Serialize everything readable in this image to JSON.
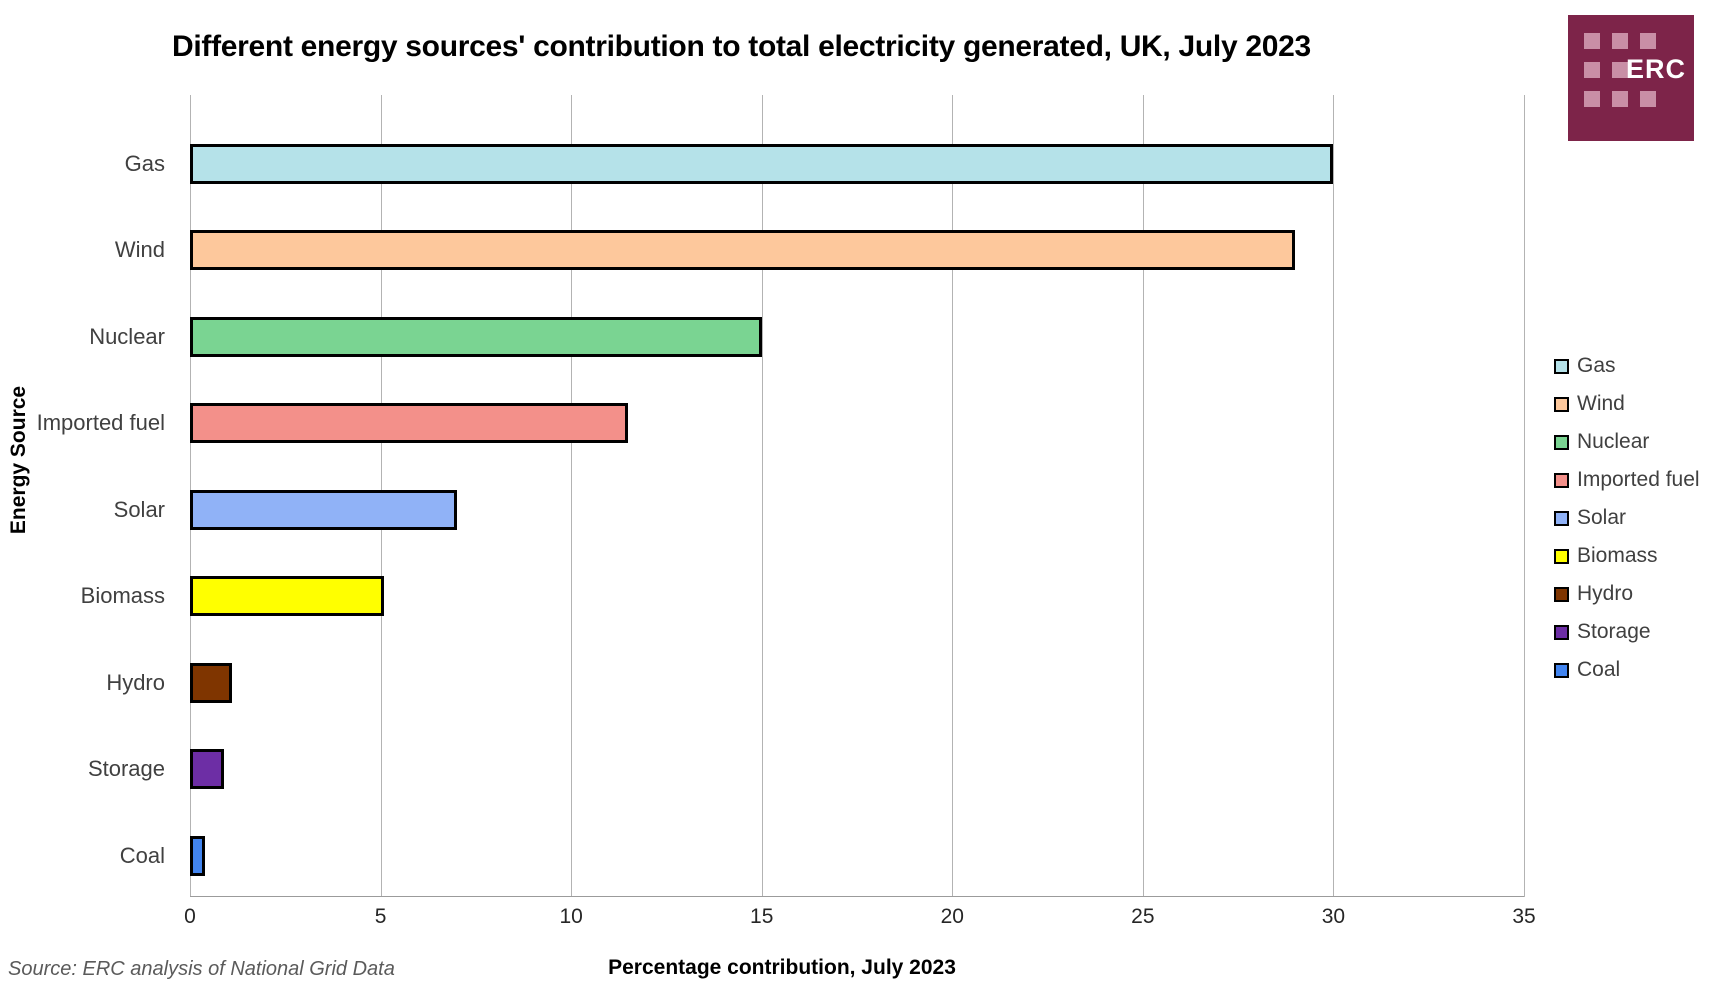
{
  "title": "Different energy sources' contribution to total electricity generated, UK, July 2023",
  "logo": {
    "text": "ERC",
    "bg_color": "#7D2449",
    "square_color": "#C98FA6"
  },
  "chart_data": {
    "type": "bar",
    "orientation": "horizontal",
    "title": "Different energy sources' contribution to total electricity generated, UK, July 2023",
    "xlabel": "Percentage contribution, July 2023",
    "ylabel": "Energy Source",
    "categories": [
      "Gas",
      "Wind",
      "Nuclear",
      "Imported fuel",
      "Solar",
      "Biomass",
      "Hydro",
      "Storage",
      "Coal"
    ],
    "values": [
      30,
      29,
      15,
      11.5,
      7,
      5.1,
      1.1,
      0.9,
      0.4
    ],
    "colors": [
      "#B5E2E9",
      "#FDC89C",
      "#7AD492",
      "#F3908A",
      "#90B2F7",
      "#FFFF00",
      "#7F3500",
      "#6D2EA5",
      "#4285F0"
    ],
    "xlim": [
      0,
      35
    ],
    "xticks": [
      0,
      5,
      10,
      15,
      20,
      25,
      30,
      35
    ],
    "grid": true,
    "gridline_color": "#B3B3B3",
    "bar_border_color": "#000000",
    "legend_position": "right",
    "legend_entries": [
      "Gas",
      "Wind",
      "Nuclear",
      "Imported fuel",
      "Solar",
      "Biomass",
      "Hydro",
      "Storage",
      "Coal"
    ]
  },
  "source": "Source: ERC analysis of National Grid Data"
}
